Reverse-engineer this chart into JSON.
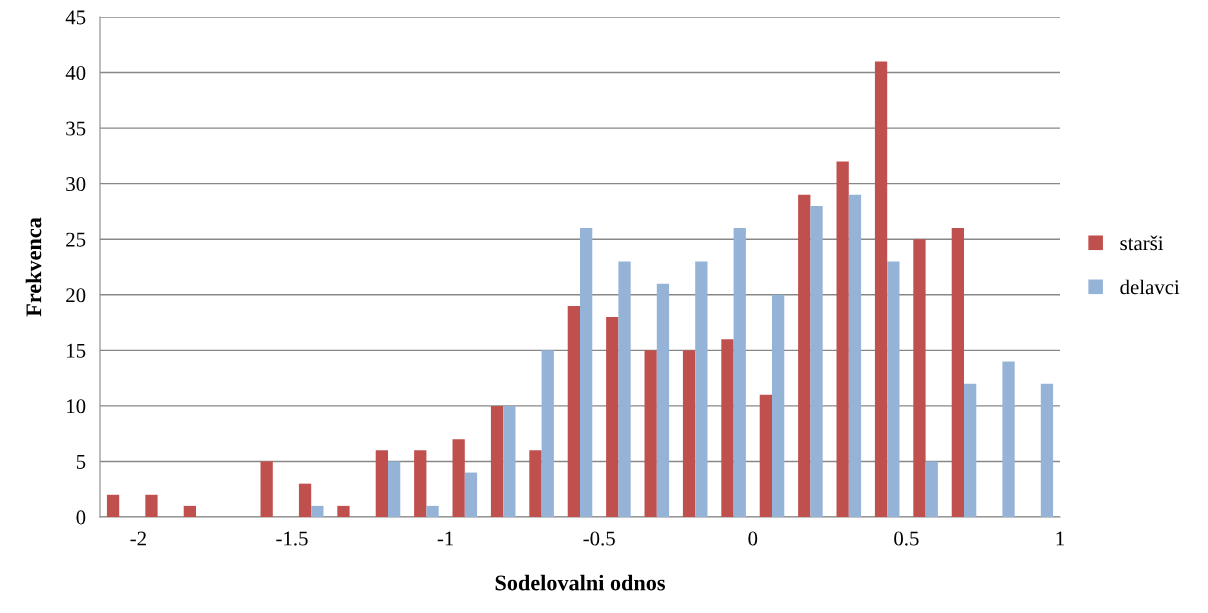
{
  "chart_data": {
    "type": "bar",
    "xlabel": "Sodelovalni odnos",
    "ylabel": "Frekvenca",
    "x": [
      -2.0625,
      -1.9375,
      -1.8125,
      -1.6875,
      -1.5625,
      -1.4375,
      -1.3125,
      -1.1875,
      -1.0625,
      -0.9375,
      -0.8125,
      -0.6875,
      -0.5625,
      -0.4375,
      -0.3125,
      -0.1875,
      -0.0625,
      0.0625,
      0.1875,
      0.3125,
      0.4375,
      0.5625,
      0.6875,
      0.8125,
      0.9375
    ],
    "series": [
      {
        "name": "starši",
        "color": "#c0504d",
        "values": [
          2,
          2,
          1,
          0,
          5,
          3,
          1,
          6,
          6,
          7,
          10,
          6,
          19,
          18,
          15,
          15,
          16,
          11,
          29,
          32,
          41,
          25,
          26,
          0,
          0
        ]
      },
      {
        "name": "delavci",
        "color": "#95b3d7",
        "values": [
          0,
          0,
          0,
          0,
          0,
          1,
          0,
          5,
          1,
          4,
          10,
          15,
          26,
          23,
          21,
          23,
          26,
          20,
          28,
          29,
          23,
          5,
          12,
          14,
          12
        ]
      }
    ],
    "xlim": [
      -2.125,
      1.0
    ],
    "xticks": [
      -2,
      -1.5,
      -1,
      -0.5,
      0,
      0.5,
      1
    ],
    "ylim": [
      0,
      45
    ],
    "yticks": [
      0,
      5,
      10,
      15,
      20,
      25,
      30,
      35,
      40,
      45
    ],
    "grid": "y",
    "legend": "right"
  }
}
